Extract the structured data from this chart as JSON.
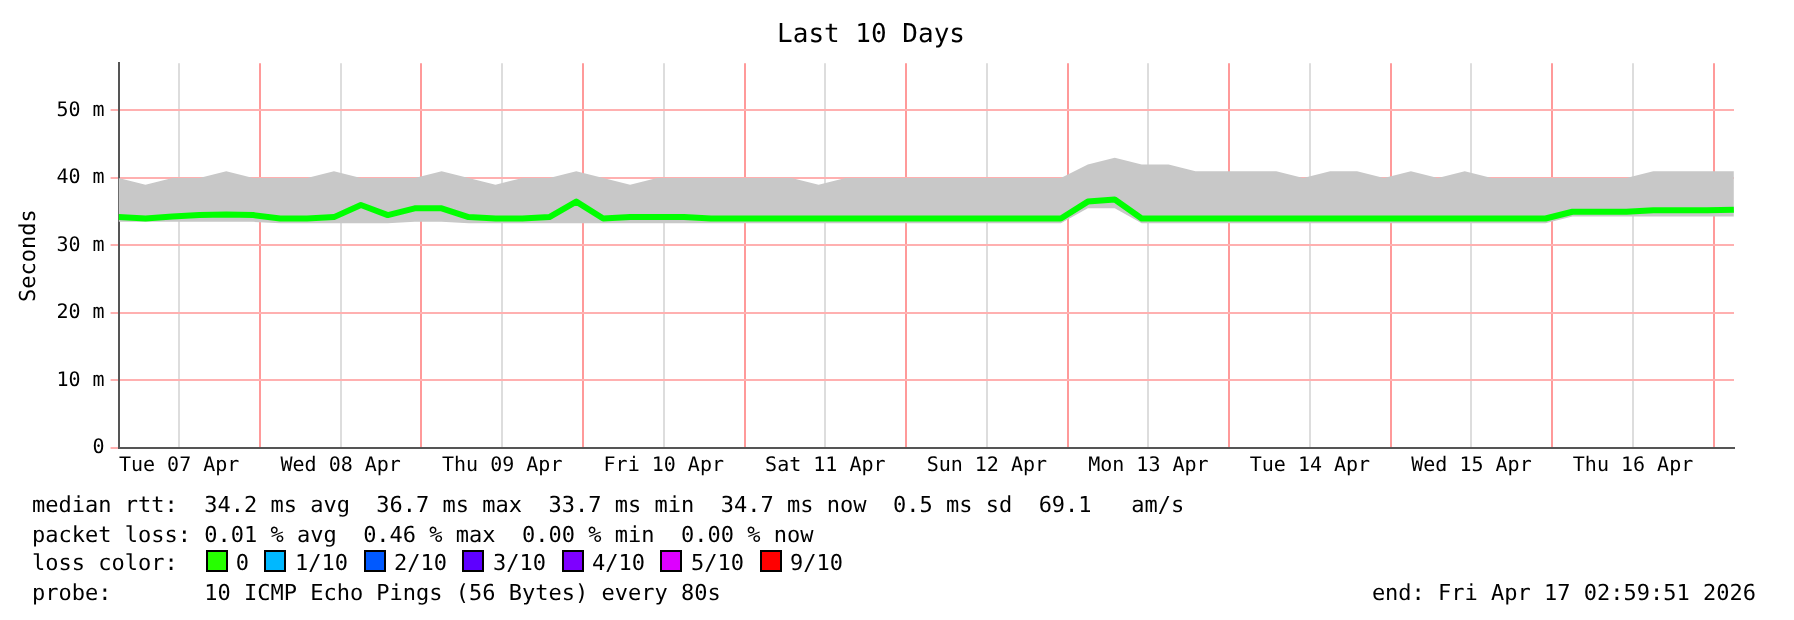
{
  "chart_data": {
    "type": "line",
    "title": "Last 10 Days",
    "ylabel": "Seconds",
    "x": [
      "2026-04-07T03:00",
      "2026-04-07T07:00",
      "2026-04-07T11:00",
      "2026-04-07T15:00",
      "2026-04-07T19:00",
      "2026-04-07T23:00",
      "2026-04-08T03:00",
      "2026-04-08T07:00",
      "2026-04-08T11:00",
      "2026-04-08T15:00",
      "2026-04-08T19:00",
      "2026-04-08T23:00",
      "2026-04-09T03:00",
      "2026-04-09T07:00",
      "2026-04-09T11:00",
      "2026-04-09T15:00",
      "2026-04-09T19:00",
      "2026-04-09T23:00",
      "2026-04-10T03:00",
      "2026-04-10T07:00",
      "2026-04-10T11:00",
      "2026-04-10T15:00",
      "2026-04-10T19:00",
      "2026-04-10T23:00",
      "2026-04-11T03:00",
      "2026-04-11T07:00",
      "2026-04-11T11:00",
      "2026-04-11T15:00",
      "2026-04-11T19:00",
      "2026-04-11T23:00",
      "2026-04-12T03:00",
      "2026-04-12T07:00",
      "2026-04-12T11:00",
      "2026-04-12T15:00",
      "2026-04-12T19:00",
      "2026-04-12T23:00",
      "2026-04-13T03:00",
      "2026-04-13T07:00",
      "2026-04-13T11:00",
      "2026-04-13T15:00",
      "2026-04-13T19:00",
      "2026-04-13T23:00",
      "2026-04-14T03:00",
      "2026-04-14T07:00",
      "2026-04-14T11:00",
      "2026-04-14T15:00",
      "2026-04-14T19:00",
      "2026-04-14T23:00",
      "2026-04-15T03:00",
      "2026-04-15T07:00",
      "2026-04-15T11:00",
      "2026-04-15T15:00",
      "2026-04-15T19:00",
      "2026-04-15T23:00",
      "2026-04-16T03:00",
      "2026-04-16T07:00",
      "2026-04-16T11:00",
      "2026-04-16T15:00",
      "2026-04-16T19:00",
      "2026-04-16T23:00",
      "2026-04-17T02:59"
    ],
    "series": [
      {
        "color": "#00ff00",
        "values": [
          34.2,
          34,
          34.3,
          34.5,
          34.6,
          34.5,
          34,
          34,
          34.2,
          36,
          34.5,
          35.5,
          35.5,
          34.2,
          34,
          34,
          34.2,
          36.5,
          34,
          34.2,
          34.2,
          34.2,
          34,
          34,
          34,
          34,
          34,
          34,
          34,
          34,
          34,
          34,
          34,
          34,
          34,
          34,
          36.5,
          36.8,
          34,
          34,
          34,
          34,
          34,
          34,
          34,
          34,
          34,
          34,
          34,
          34,
          34,
          34,
          34,
          34,
          35,
          35,
          35,
          35.2,
          35.2,
          35.2,
          35.3
        ],
        "lower": [
          33.5,
          33.5,
          33.5,
          33.5,
          33.5,
          33.5,
          33.3,
          33.3,
          33.3,
          33.3,
          33.3,
          33.5,
          33.5,
          33.3,
          33.3,
          33.3,
          33.3,
          33.3,
          33.3,
          33.3,
          33.3,
          33.3,
          33.3,
          33.3,
          33.3,
          33.3,
          33.3,
          33.3,
          33.3,
          33.3,
          33.3,
          33.3,
          33.3,
          33.3,
          33.3,
          33.3,
          35.5,
          35.5,
          33.3,
          33.3,
          33.3,
          33.3,
          33.3,
          33.3,
          33.3,
          33.3,
          33.3,
          33.3,
          33.3,
          33.3,
          33.3,
          33.3,
          33.3,
          33.3,
          34.3,
          34.3,
          34.3,
          34.3,
          34.3,
          34.3,
          34.3
        ],
        "upper": [
          40,
          39,
          40,
          40,
          41,
          40,
          40,
          40,
          41,
          40,
          40,
          40,
          41,
          40,
          39,
          40,
          40,
          41,
          40,
          39,
          40,
          40,
          40,
          40,
          40,
          40,
          39,
          40,
          40,
          40,
          40,
          40,
          40,
          40,
          40,
          40,
          42,
          43,
          42,
          42,
          41,
          41,
          41,
          41,
          40,
          41,
          41,
          40,
          41,
          40,
          41,
          40,
          40,
          40,
          40,
          40,
          40,
          41,
          41,
          41,
          41
        ]
      }
    ],
    "xlim": [
      "2026-04-07T03:00",
      "2026-04-17T03:00"
    ],
    "xticks": [
      {
        "value": "2026-04-07T12:00",
        "label": "Tue 07 Apr"
      },
      {
        "value": "2026-04-08T00:00",
        "label": null
      },
      {
        "value": "2026-04-08T12:00",
        "label": "Wed 08 Apr"
      },
      {
        "value": "2026-04-09T00:00",
        "label": null
      },
      {
        "value": "2026-04-09T12:00",
        "label": "Thu 09 Apr"
      },
      {
        "value": "2026-04-10T00:00",
        "label": null
      },
      {
        "value": "2026-04-10T12:00",
        "label": "Fri 10 Apr"
      },
      {
        "value": "2026-04-11T00:00",
        "label": null
      },
      {
        "value": "2026-04-11T12:00",
        "label": "Sat 11 Apr"
      },
      {
        "value": "2026-04-12T00:00",
        "label": null
      },
      {
        "value": "2026-04-12T12:00",
        "label": "Sun 12 Apr"
      },
      {
        "value": "2026-04-13T00:00",
        "label": null
      },
      {
        "value": "2026-04-13T12:00",
        "label": "Mon 13 Apr"
      },
      {
        "value": "2026-04-14T00:00",
        "label": null
      },
      {
        "value": "2026-04-14T12:00",
        "label": "Tue 14 Apr"
      },
      {
        "value": "2026-04-15T00:00",
        "label": null
      },
      {
        "value": "2026-04-15T12:00",
        "label": "Wed 15 Apr"
      },
      {
        "value": "2026-04-16T00:00",
        "label": null
      },
      {
        "value": "2026-04-16T12:00",
        "label": "Thu 16 Apr"
      },
      {
        "value": "2026-04-17T00:00",
        "label": null
      }
    ],
    "ylim": [
      0,
      57
    ],
    "yticks": [
      0,
      {
        "value": 10,
        "label": "10 m"
      },
      {
        "value": 20,
        "label": "20 m"
      },
      {
        "value": 30,
        "label": "30 m"
      },
      {
        "value": 40,
        "label": "40 m"
      },
      {
        "value": 50,
        "label": "50 m"
      }
    ],
    "grid": true,
    "legend": false,
    "annotations": [
      "median rtt:  34.2 ms avg  36.7 ms max  33.7 ms min  34.7 ms now  0.5 ms sd  69.1   am/s",
      "packet loss: 0.01 % avg  0.46 % max  0.00 % min  0.00 % now",
      "loss color:",
      "0",
      "1/10",
      "2/10",
      "3/10",
      "4/10",
      "5/10",
      "9/10",
      "probe:       10 ICMP Echo Pings (56 Bytes) every 80s",
      "end: Fri Apr 17 02:59:51 2026"
    ]
  }
}
